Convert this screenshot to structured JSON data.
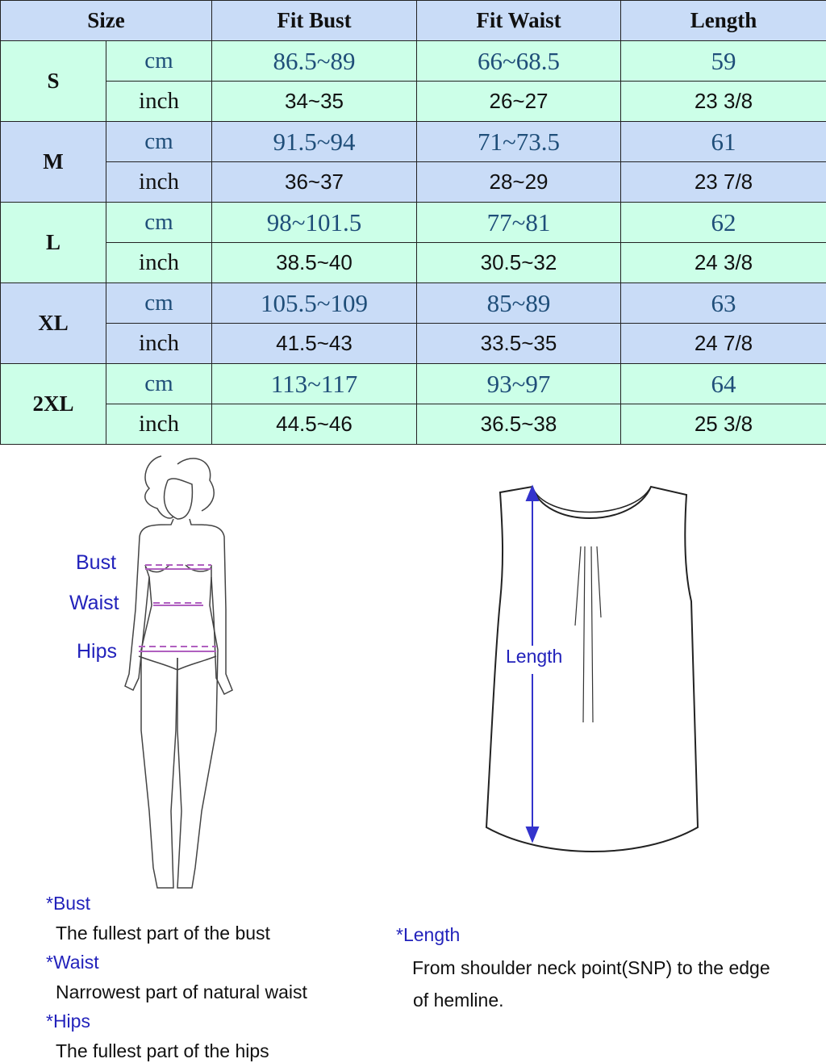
{
  "table": {
    "headers": [
      "Size",
      "Fit Bust",
      "Fit Waist",
      "Length"
    ],
    "unit_cm": "cm",
    "unit_inch": "inch",
    "rows": [
      {
        "size": "S",
        "cm": [
          "86.5~89",
          "66~68.5",
          "59"
        ],
        "inch": [
          "34~35",
          "26~27",
          "23 3/8"
        ]
      },
      {
        "size": "M",
        "cm": [
          "91.5~94",
          "71~73.5",
          "61"
        ],
        "inch": [
          "36~37",
          "28~29",
          "23 7/8"
        ]
      },
      {
        "size": "L",
        "cm": [
          "98~101.5",
          "77~81",
          "62"
        ],
        "inch": [
          "38.5~40",
          "30.5~32",
          "24 3/8"
        ]
      },
      {
        "size": "XL",
        "cm": [
          "105.5~109",
          "85~89",
          "63"
        ],
        "inch": [
          "41.5~43",
          "33.5~35",
          "24 7/8"
        ]
      },
      {
        "size": "2XL",
        "cm": [
          "113~117",
          "93~97",
          "64"
        ],
        "inch": [
          "44.5~46",
          "36.5~38",
          "25 3/8"
        ]
      }
    ]
  },
  "figure": {
    "bust": "Bust",
    "waist": "Waist",
    "hips": "Hips",
    "length": "Length"
  },
  "notes": {
    "bust_title": "*Bust",
    "bust_text": "The fullest part of the bust",
    "waist_title": "*Waist",
    "waist_text": "Narrowest part of natural waist",
    "hips_title": "*Hips",
    "hips_text": "The fullest part of the hips",
    "length_title": "*Length",
    "length_text1": "From shoulder neck point(SNP) to the edge",
    "length_text2": "of hemline."
  },
  "colors": {
    "header": "#c9dcf7",
    "green_row": "#ccffe8",
    "cm_text": "#1f4e79",
    "label": "#2222bb",
    "measure_line": "#b060c0",
    "arrow": "#3333cc"
  }
}
